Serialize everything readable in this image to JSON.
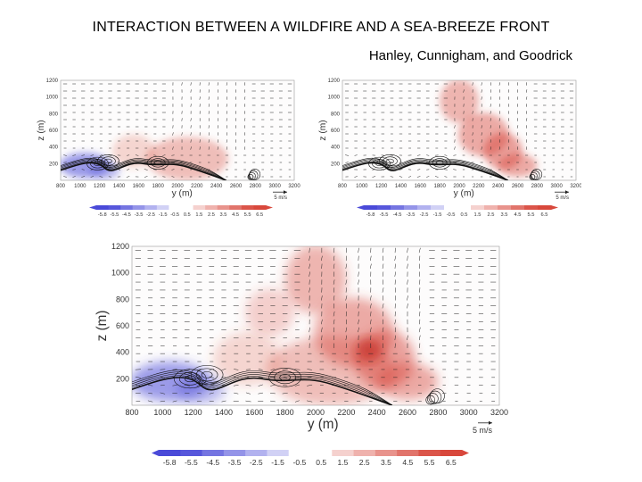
{
  "header": {
    "title": "INTERACTION BETWEEN A WILDFIRE AND A SEA-BREEZE FRONT",
    "authors": "Hanley, Cunnigham, and Goodrick"
  },
  "chart_data": [
    {
      "type": "heatmap",
      "panel": "top-left",
      "title": "",
      "xlabel": "y (m)",
      "ylabel": "z (m)",
      "xlim": [
        800,
        3200
      ],
      "ylim": [
        0,
        1200
      ],
      "x_ticks": [
        "800",
        "1000",
        "1200",
        "1400",
        "1600",
        "1800",
        "2000",
        "2200",
        "2400",
        "2600",
        "2800",
        "3000",
        "3200"
      ],
      "y_ticks": [
        "200",
        "400",
        "600",
        "800",
        "1000",
        "1200"
      ],
      "vector_scale_label": "5 m/s",
      "colorbar_labels": [
        "-5.8",
        "-5.5",
        "-4.5",
        "-3.5",
        "-2.5",
        "-1.5",
        "-0.5",
        "0.5",
        "1.5",
        "2.5",
        "3.5",
        "4.5",
        "5.5",
        "6.5"
      ],
      "colors": {
        "negative": "#4a4ad8",
        "positive": "#d8483c"
      }
    },
    {
      "type": "heatmap",
      "panel": "top-right",
      "title": "",
      "xlabel": "y (m)",
      "ylabel": "z (m)",
      "xlim": [
        800,
        3200
      ],
      "ylim": [
        0,
        1200
      ],
      "x_ticks": [
        "800",
        "1000",
        "1200",
        "1400",
        "1600",
        "1800",
        "2000",
        "2200",
        "2400",
        "2600",
        "2800",
        "3000",
        "3200"
      ],
      "y_ticks": [
        "200",
        "400",
        "600",
        "800",
        "1000",
        "1200"
      ],
      "vector_scale_label": "5 m/s",
      "colorbar_labels": [
        "-5.8",
        "-5.5",
        "-4.5",
        "-3.5",
        "-2.5",
        "-1.5",
        "-0.5",
        "0.5",
        "1.5",
        "2.5",
        "3.5",
        "4.5",
        "5.5",
        "6.5"
      ],
      "colors": {
        "negative": "#4a4ad8",
        "positive": "#d8483c"
      }
    },
    {
      "type": "heatmap",
      "panel": "bottom",
      "title": "",
      "xlabel": "y (m)",
      "ylabel": "z (m)",
      "xlim": [
        800,
        3200
      ],
      "ylim": [
        0,
        1200
      ],
      "x_ticks": [
        "800",
        "1000",
        "1200",
        "1400",
        "1600",
        "1800",
        "2000",
        "2200",
        "2400",
        "2600",
        "2800",
        "3000",
        "3200"
      ],
      "y_ticks": [
        "200",
        "400",
        "600",
        "800",
        "1000",
        "1200"
      ],
      "vector_scale_label": "5 m/s",
      "colorbar_labels": [
        "-5.8",
        "-5.5",
        "-4.5",
        "-3.5",
        "-2.5",
        "-1.5",
        "-0.5",
        "0.5",
        "1.5",
        "2.5",
        "3.5",
        "4.5",
        "5.5",
        "6.5"
      ],
      "colors": {
        "negative": "#4a4ad8",
        "positive": "#d8483c"
      }
    }
  ]
}
